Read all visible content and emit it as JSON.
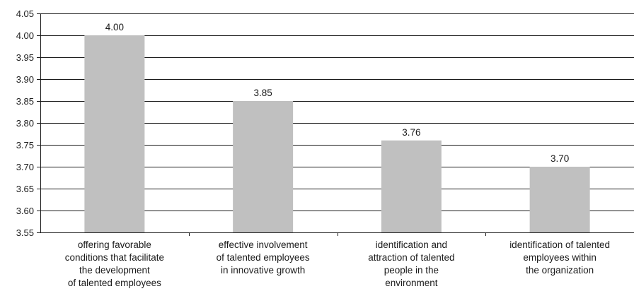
{
  "chart_data": {
    "type": "bar",
    "categories": [
      [
        "offering favorable",
        "conditions that facilitate",
        "the development",
        "of talented employees"
      ],
      [
        "effective involvement",
        "of talented employees",
        "in innovative growth"
      ],
      [
        "identification and",
        "attraction of talented",
        "people in the",
        "environment"
      ],
      [
        "identification of talented",
        "employees within",
        "the organization"
      ]
    ],
    "values": [
      4.0,
      3.85,
      3.76,
      3.7
    ],
    "data_labels": [
      "4.00",
      "3.85",
      "3.76",
      "3.70"
    ],
    "ylim": [
      3.55,
      4.05
    ],
    "yticks": [
      3.55,
      3.6,
      3.65,
      3.7,
      3.75,
      3.8,
      3.85,
      3.9,
      3.95,
      4.0,
      4.05
    ],
    "ytick_labels": [
      "3.55",
      "3.60",
      "3.65",
      "3.70",
      "3.75",
      "3.80",
      "3.85",
      "3.90",
      "3.95",
      "4.00",
      "4.05"
    ],
    "grid": true,
    "bar_color": "#c0c0c0",
    "grid_color": "#1a1a1a",
    "title": "",
    "xlabel": "",
    "ylabel": ""
  }
}
